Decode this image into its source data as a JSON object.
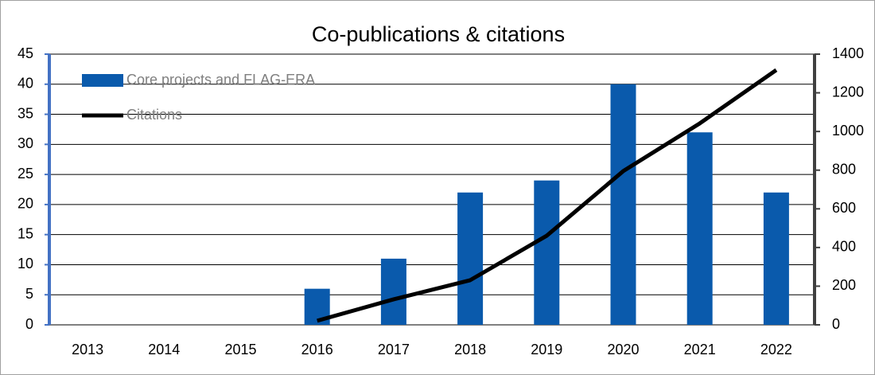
{
  "chart_data": {
    "type": "bar-line",
    "title": "Co-publications & citations",
    "categories": [
      "2013",
      "2014",
      "2015",
      "2016",
      "2017",
      "2018",
      "2019",
      "2020",
      "2021",
      "2022"
    ],
    "series": [
      {
        "name": "Core projects and FLAG-ERA",
        "type": "bar",
        "color": "#0a5aac",
        "values": [
          0,
          0,
          0,
          6,
          11,
          22,
          24,
          40,
          32,
          22
        ]
      },
      {
        "name": "Citations",
        "type": "line",
        "axis": "y2",
        "color": "#000000",
        "values": [
          null,
          null,
          null,
          21,
          132,
          231,
          461,
          795,
          1042,
          1318
        ]
      }
    ],
    "ylim": [
      0,
      45
    ],
    "yticks": [
      0,
      5,
      10,
      15,
      20,
      25,
      30,
      35,
      40,
      45
    ],
    "y2lim": [
      0,
      1400
    ],
    "y2ticks": [
      0,
      200,
      400,
      600,
      800,
      1000,
      1200,
      1400
    ],
    "grid": true
  }
}
